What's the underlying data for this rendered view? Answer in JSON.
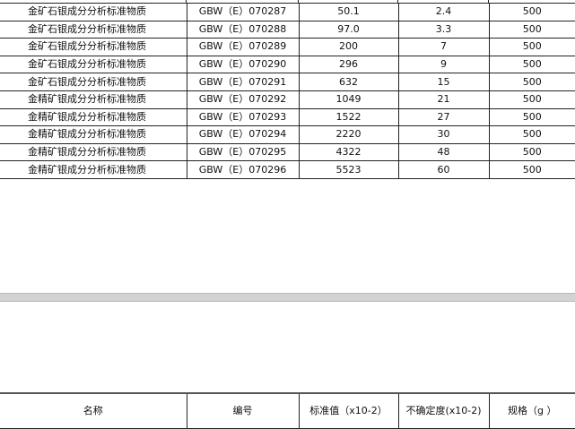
{
  "rows": [
    {
      "name": "金矿石银成分分析标准物质",
      "code": "GBW（E）070287",
      "value": "50.1",
      "uncertainty": "2.4",
      "spec": "500"
    },
    {
      "name": "金矿石银成分分析标准物质",
      "code": "GBW（E）070288",
      "value": "97.0",
      "uncertainty": "3.3",
      "spec": "500"
    },
    {
      "name": "金矿石银成分分析标准物质",
      "code": "GBW（E）070289",
      "value": "200",
      "uncertainty": "7",
      "spec": "500"
    },
    {
      "name": "金矿石银成分分析标准物质",
      "code": "GBW（E）070290",
      "value": "296",
      "uncertainty": "9",
      "spec": "500"
    },
    {
      "name": "金矿石银成分分析标准物质",
      "code": "GBW（E）070291",
      "value": "632",
      "uncertainty": "15",
      "spec": "500"
    },
    {
      "name": "金精矿银成分分析标准物质",
      "code": "GBW（E）070292",
      "value": "1049",
      "uncertainty": "21",
      "spec": "500"
    },
    {
      "name": "金精矿银成分分析标准物质",
      "code": "GBW（E）070293",
      "value": "1522",
      "uncertainty": "27",
      "spec": "500"
    },
    {
      "name": "金精矿银成分分析标准物质",
      "code": "GBW（E）070294",
      "value": "2220",
      "uncertainty": "30",
      "spec": "500"
    },
    {
      "name": "金精矿银成分分析标准物质",
      "code": "GBW（E）070295",
      "value": "4322",
      "uncertainty": "48",
      "spec": "500"
    },
    {
      "name": "金精矿银成分分析标准物质",
      "code": "GBW（E）070296",
      "value": "5523",
      "uncertainty": "60",
      "spec": "500"
    }
  ],
  "header": {
    "name": "名称",
    "code": "编号",
    "value": "标准值（x10-2）",
    "uncertainty": "不确定度(x10-2)",
    "spec": "规格（g ）"
  }
}
